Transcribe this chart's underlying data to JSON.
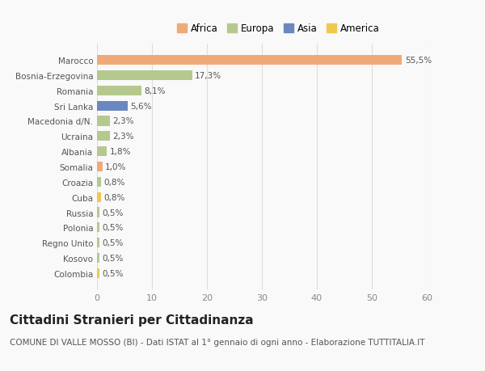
{
  "countries": [
    "Marocco",
    "Bosnia-Erzegovina",
    "Romania",
    "Sri Lanka",
    "Macedonia d/N.",
    "Ucraina",
    "Albania",
    "Somalia",
    "Croazia",
    "Cuba",
    "Russia",
    "Polonia",
    "Regno Unito",
    "Kosovo",
    "Colombia"
  ],
  "values": [
    55.5,
    17.3,
    8.1,
    5.6,
    2.3,
    2.3,
    1.8,
    1.0,
    0.8,
    0.8,
    0.5,
    0.5,
    0.5,
    0.5,
    0.5
  ],
  "labels": [
    "55,5%",
    "17,3%",
    "8,1%",
    "5,6%",
    "2,3%",
    "2,3%",
    "1,8%",
    "1,0%",
    "0,8%",
    "0,8%",
    "0,5%",
    "0,5%",
    "0,5%",
    "0,5%",
    "0,5%"
  ],
  "colors": [
    "#f0aa78",
    "#b5c98e",
    "#b5c98e",
    "#6b87c0",
    "#b5c98e",
    "#b5c98e",
    "#b5c98e",
    "#f0aa78",
    "#b5c98e",
    "#f0c850",
    "#b5c98e",
    "#b5c98e",
    "#b5c98e",
    "#b5c98e",
    "#f0c850"
  ],
  "continent_colors": {
    "Africa": "#f0aa78",
    "Europa": "#b5c98e",
    "Asia": "#6b87c0",
    "America": "#f0c850"
  },
  "title": "Cittadini Stranieri per Cittadinanza",
  "subtitle": "COMUNE DI VALLE MOSSO (BI) - Dati ISTAT al 1° gennaio di ogni anno - Elaborazione TUTTITALIA.IT",
  "xlim": [
    0,
    60
  ],
  "xticks": [
    0,
    10,
    20,
    30,
    40,
    50,
    60
  ],
  "background_color": "#f9f9f9",
  "bar_height": 0.65,
  "title_fontsize": 11,
  "subtitle_fontsize": 7.5
}
